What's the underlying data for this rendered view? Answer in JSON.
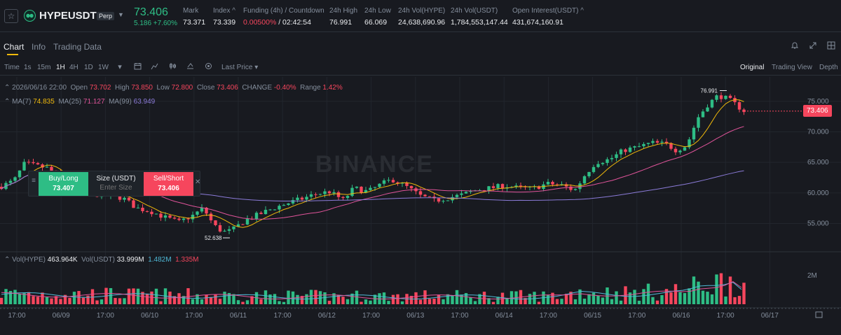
{
  "header": {
    "symbol": "HYPEUSDT",
    "badge": "Perp",
    "last_price": "73.406",
    "change": "5.186 +7.60%",
    "stats": [
      {
        "label": "Mark",
        "value": "73.371"
      },
      {
        "label": "Index ^",
        "value": "73.339"
      },
      {
        "label": "Funding (4h) / Countdown",
        "value_red": "0.00500%",
        "value": " / 02:42:54"
      },
      {
        "label": "24h High",
        "value": "76.991"
      },
      {
        "label": "24h Low",
        "value": "66.069"
      },
      {
        "label": "24h Vol(HYPE)",
        "value": "24,638,690.96"
      },
      {
        "label": "24h Vol(USDT)",
        "value": "1,784,553,147.44"
      },
      {
        "label": "Open Interest(USDT) ^",
        "value": "431,674,160.91"
      }
    ],
    "colors": {
      "up": "#2ebd85",
      "down": "#f6465d",
      "accent": "#f0b90b"
    }
  },
  "tabs": [
    "Chart",
    "Info",
    "Trading Data"
  ],
  "toolbar": {
    "time_label": "Time",
    "intervals": [
      "1s",
      "15m",
      "1H",
      "4H",
      "1D",
      "1W"
    ],
    "active_interval": "1H",
    "price_type": "Last Price",
    "views": [
      "Original",
      "Trading View",
      "Depth"
    ],
    "active_view": "Original"
  },
  "legend": {
    "date": "2026/06/16 22:00",
    "open_label": "Open",
    "open": "73.702",
    "high_label": "High",
    "high": "73.850",
    "low_label": "Low",
    "low": "72.800",
    "close_label": "Close",
    "close": "73.406",
    "change_label": "CHANGE",
    "change": "-0.40%",
    "range_label": "Range",
    "range": "1.42%",
    "ma7_label": "MA(7)",
    "ma7": "74.835",
    "ma25_label": "MA(25)",
    "ma25": "71.127",
    "ma99_label": "MA(99)",
    "ma99": "63.949",
    "vol_hype_label": "Vol(HYPE)",
    "vol_hype": "463.964K",
    "vol_usdt_label": "Vol(USDT)",
    "vol_usdt": "33.999M",
    "vol_ma1": "1.482M",
    "vol_ma2": "1.335M"
  },
  "order_widget": {
    "buy_label": "Buy/Long",
    "buy_price": "73.407",
    "size_label": "Size (USDT)",
    "size_placeholder": "Enter Size",
    "sell_label": "Sell/Short",
    "sell_price": "73.406"
  },
  "watermark": "BINANCE",
  "chart_data": {
    "type": "candlestick",
    "price_axis_ticks": [
      "75.000",
      "70.000",
      "65.000",
      "60.000",
      "55.000"
    ],
    "volume_axis_ticks": [
      "2M"
    ],
    "time_ticks": [
      "17:00",
      "06/09",
      "17:00",
      "06/10",
      "17:00",
      "06/11",
      "17:00",
      "06/12",
      "17:00",
      "06/13",
      "17:00",
      "06/14",
      "17:00",
      "06/15",
      "17:00",
      "06/16",
      "17:00",
      "06/17"
    ],
    "high_marker": "76.991",
    "low_marker": "52.638",
    "current_price": "73.406",
    "ylim": [
      51.5,
      79
    ],
    "ma_colors": {
      "ma7": "#f0b90b",
      "ma25": "#e0549a",
      "ma99": "#8b7bd8"
    },
    "path": [
      [
        0,
        61
      ],
      [
        20,
        62
      ],
      [
        35,
        64.8
      ],
      [
        48,
        64.5
      ],
      [
        70,
        64
      ],
      [
        85,
        62.3
      ],
      [
        95,
        60
      ],
      [
        110,
        61
      ],
      [
        135,
        59.8
      ],
      [
        155,
        59.5
      ],
      [
        175,
        59.2
      ],
      [
        195,
        57.5
      ],
      [
        215,
        57
      ],
      [
        235,
        56
      ],
      [
        255,
        55.2
      ],
      [
        275,
        56.3
      ],
      [
        290,
        57.5
      ],
      [
        305,
        54.7
      ],
      [
        318,
        53.6
      ],
      [
        330,
        53.8
      ],
      [
        350,
        55.5
      ],
      [
        370,
        56.5
      ],
      [
        390,
        57.5
      ],
      [
        410,
        58.3
      ],
      [
        430,
        59
      ],
      [
        450,
        59.8
      ],
      [
        470,
        60.2
      ],
      [
        490,
        58.8
      ],
      [
        505,
        60.8
      ],
      [
        525,
        60.2
      ],
      [
        545,
        61.5
      ],
      [
        560,
        62.2
      ],
      [
        580,
        61
      ],
      [
        600,
        59.5
      ],
      [
        620,
        58.7
      ],
      [
        640,
        59.2
      ],
      [
        660,
        59.7
      ],
      [
        680,
        60.5
      ],
      [
        700,
        60.8
      ],
      [
        720,
        61.2
      ],
      [
        740,
        60.8
      ],
      [
        760,
        60.7
      ],
      [
        780,
        61.5
      ],
      [
        800,
        61.3
      ],
      [
        820,
        60.4
      ],
      [
        835,
        63
      ],
      [
        850,
        65
      ],
      [
        870,
        65.5
      ],
      [
        890,
        67
      ],
      [
        910,
        67.5
      ],
      [
        930,
        68.2
      ],
      [
        950,
        68
      ],
      [
        965,
        67
      ],
      [
        980,
        67.8
      ],
      [
        995,
        72.2
      ],
      [
        1010,
        74.5
      ],
      [
        1025,
        76
      ],
      [
        1040,
        75.3
      ],
      [
        1055,
        74
      ],
      [
        1062,
        73.4
      ]
    ],
    "volume_profile": [
      [
        0,
        0.4
      ],
      [
        200,
        0.35
      ],
      [
        400,
        0.3
      ],
      [
        600,
        0.3
      ],
      [
        800,
        0.3
      ],
      [
        830,
        0.45
      ],
      [
        900,
        0.4
      ],
      [
        980,
        0.5
      ],
      [
        1000,
        0.7
      ],
      [
        1030,
        0.8
      ],
      [
        1045,
        1.0
      ],
      [
        1062,
        0.6
      ]
    ]
  }
}
